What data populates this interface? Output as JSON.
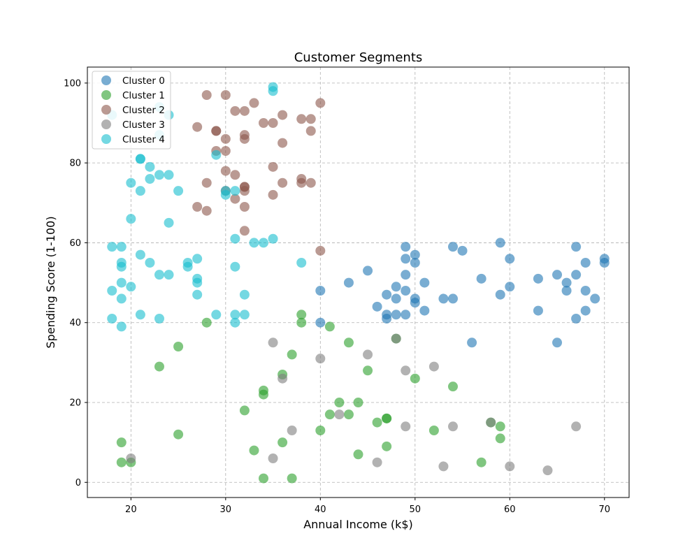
{
  "chart_data": {
    "type": "scatter",
    "title": "Customer Segments",
    "xlabel": "Annual Income (k$)",
    "ylabel": "Spending Score (1-100)",
    "xlim": [
      15.4,
      72.6
    ],
    "ylim": [
      -3.8,
      104
    ],
    "xticks": [
      20,
      30,
      40,
      50,
      60,
      70
    ],
    "yticks": [
      0,
      20,
      40,
      60,
      80,
      100
    ],
    "grid": true,
    "legend_position": "upper-left",
    "series": [
      {
        "name": "Cluster 0",
        "color": "#1f77b4",
        "points": [
          [
            40,
            48
          ],
          [
            40,
            40
          ],
          [
            43,
            50
          ],
          [
            45,
            53
          ],
          [
            46,
            44
          ],
          [
            47,
            47
          ],
          [
            47,
            42
          ],
          [
            47,
            41
          ],
          [
            48,
            49
          ],
          [
            48,
            46
          ],
          [
            48,
            42
          ],
          [
            49,
            59
          ],
          [
            49,
            56
          ],
          [
            49,
            52
          ],
          [
            49,
            48
          ],
          [
            49,
            42
          ],
          [
            50,
            57
          ],
          [
            50,
            55
          ],
          [
            50,
            46
          ],
          [
            50,
            45
          ],
          [
            51,
            50
          ],
          [
            51,
            43
          ],
          [
            53,
            46
          ],
          [
            54,
            59
          ],
          [
            54,
            46
          ],
          [
            55,
            58
          ],
          [
            56,
            35
          ],
          [
            57,
            51
          ],
          [
            59,
            60
          ],
          [
            59,
            47
          ],
          [
            60,
            56
          ],
          [
            60,
            49
          ],
          [
            63,
            51
          ],
          [
            63,
            43
          ],
          [
            65,
            52
          ],
          [
            65,
            35
          ],
          [
            66,
            50
          ],
          [
            66,
            48
          ],
          [
            67,
            59
          ],
          [
            67,
            52
          ],
          [
            67,
            41
          ],
          [
            68,
            55
          ],
          [
            68,
            48
          ],
          [
            68,
            43
          ],
          [
            69,
            46
          ],
          [
            70,
            56
          ],
          [
            70,
            55
          ]
        ]
      },
      {
        "name": "Cluster 1",
        "color": "#2ca02c",
        "points": [
          [
            19,
            10
          ],
          [
            19,
            5
          ],
          [
            20,
            5
          ],
          [
            23,
            29
          ],
          [
            25,
            34
          ],
          [
            25,
            12
          ],
          [
            28,
            40
          ],
          [
            32,
            18
          ],
          [
            33,
            8
          ],
          [
            34,
            23
          ],
          [
            34,
            22
          ],
          [
            34,
            1
          ],
          [
            36,
            27
          ],
          [
            36,
            10
          ],
          [
            37,
            32
          ],
          [
            37,
            1
          ],
          [
            38,
            42
          ],
          [
            38,
            40
          ],
          [
            40,
            13
          ],
          [
            41,
            39
          ],
          [
            41,
            17
          ],
          [
            42,
            20
          ],
          [
            43,
            35
          ],
          [
            43,
            17
          ],
          [
            44,
            20
          ],
          [
            44,
            7
          ],
          [
            45,
            28
          ],
          [
            46,
            15
          ],
          [
            47,
            16
          ],
          [
            47,
            16
          ],
          [
            47,
            9
          ],
          [
            48,
            36
          ],
          [
            50,
            26
          ],
          [
            52,
            13
          ],
          [
            54,
            24
          ],
          [
            57,
            5
          ],
          [
            58,
            15
          ],
          [
            59,
            14
          ],
          [
            59,
            11
          ]
        ]
      },
      {
        "name": "Cluster 2",
        "color": "#8c564b",
        "points": [
          [
            27,
            89
          ],
          [
            27,
            69
          ],
          [
            28,
            97
          ],
          [
            28,
            75
          ],
          [
            28,
            68
          ],
          [
            29,
            88
          ],
          [
            29,
            88
          ],
          [
            29,
            83
          ],
          [
            30,
            97
          ],
          [
            30,
            86
          ],
          [
            30,
            83
          ],
          [
            30,
            78
          ],
          [
            30,
            73
          ],
          [
            31,
            93
          ],
          [
            31,
            77
          ],
          [
            31,
            71
          ],
          [
            32,
            93
          ],
          [
            32,
            87
          ],
          [
            32,
            86
          ],
          [
            32,
            74
          ],
          [
            32,
            74
          ],
          [
            32,
            73
          ],
          [
            32,
            69
          ],
          [
            32,
            63
          ],
          [
            33,
            95
          ],
          [
            34,
            90
          ],
          [
            35,
            90
          ],
          [
            35,
            79
          ],
          [
            35,
            72
          ],
          [
            36,
            92
          ],
          [
            36,
            85
          ],
          [
            36,
            75
          ],
          [
            38,
            91
          ],
          [
            38,
            76
          ],
          [
            38,
            75
          ],
          [
            39,
            91
          ],
          [
            39,
            88
          ],
          [
            39,
            75
          ],
          [
            40,
            95
          ],
          [
            40,
            58
          ]
        ]
      },
      {
        "name": "Cluster 3",
        "color": "#7f7f7f",
        "points": [
          [
            20,
            6
          ],
          [
            35,
            35
          ],
          [
            35,
            6
          ],
          [
            36,
            26
          ],
          [
            37,
            13
          ],
          [
            40,
            31
          ],
          [
            42,
            17
          ],
          [
            45,
            32
          ],
          [
            46,
            5
          ],
          [
            48,
            36
          ],
          [
            49,
            28
          ],
          [
            49,
            14
          ],
          [
            52,
            29
          ],
          [
            53,
            4
          ],
          [
            54,
            14
          ],
          [
            58,
            15
          ],
          [
            60,
            4
          ],
          [
            64,
            3
          ],
          [
            67,
            14
          ]
        ]
      },
      {
        "name": "Cluster 4",
        "color": "#17becf",
        "points": [
          [
            18,
            92
          ],
          [
            18,
            59
          ],
          [
            18,
            48
          ],
          [
            18,
            41
          ],
          [
            19,
            59
          ],
          [
            19,
            55
          ],
          [
            19,
            54
          ],
          [
            19,
            50
          ],
          [
            19,
            46
          ],
          [
            19,
            39
          ],
          [
            20,
            75
          ],
          [
            20,
            66
          ],
          [
            20,
            49
          ],
          [
            21,
            81
          ],
          [
            21,
            81
          ],
          [
            21,
            73
          ],
          [
            21,
            57
          ],
          [
            21,
            42
          ],
          [
            22,
            79
          ],
          [
            22,
            76
          ],
          [
            22,
            55
          ],
          [
            23,
            94
          ],
          [
            23,
            87
          ],
          [
            23,
            77
          ],
          [
            23,
            52
          ],
          [
            23,
            41
          ],
          [
            24,
            92
          ],
          [
            24,
            77
          ],
          [
            24,
            65
          ],
          [
            24,
            52
          ],
          [
            25,
            73
          ],
          [
            26,
            55
          ],
          [
            26,
            54
          ],
          [
            27,
            56
          ],
          [
            27,
            51
          ],
          [
            27,
            50
          ],
          [
            27,
            47
          ],
          [
            29,
            82
          ],
          [
            29,
            42
          ],
          [
            30,
            73
          ],
          [
            30,
            72
          ],
          [
            31,
            73
          ],
          [
            31,
            61
          ],
          [
            31,
            54
          ],
          [
            31,
            42
          ],
          [
            31,
            40
          ],
          [
            32,
            47
          ],
          [
            32,
            42
          ],
          [
            33,
            60
          ],
          [
            34,
            60
          ],
          [
            35,
            99
          ],
          [
            35,
            98
          ],
          [
            35,
            61
          ],
          [
            38,
            55
          ]
        ]
      }
    ]
  }
}
